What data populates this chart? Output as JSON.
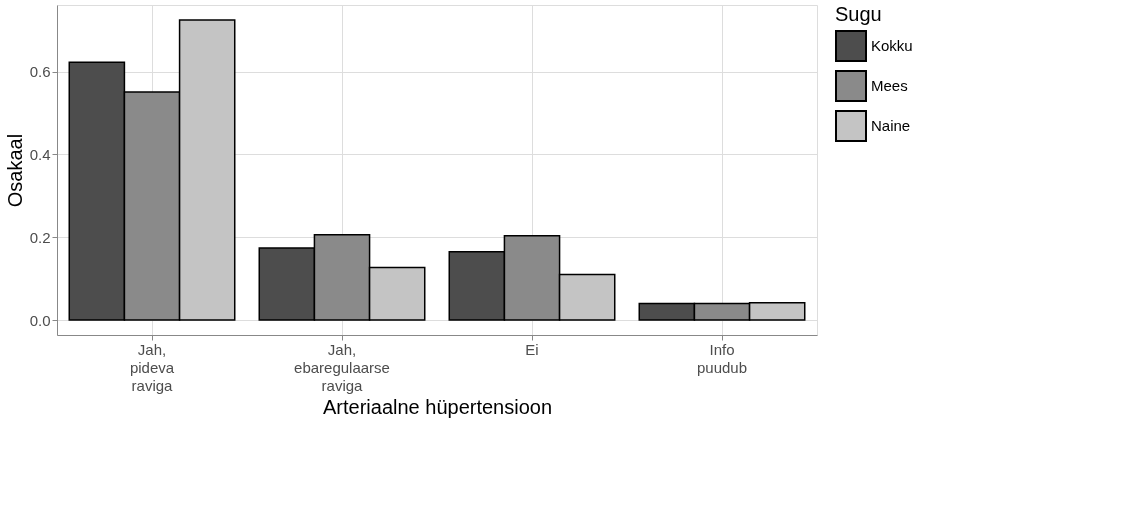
{
  "chart_data": {
    "type": "bar",
    "xlabel": "Arteriaalne hüpertensioon",
    "ylabel": "Osakaal",
    "legend_title": "Sugu",
    "categories": [
      "Jah,\npideva\nraviga",
      "Jah,\nebaregulaarse\nraviga",
      "Ei",
      "Info\npuudub"
    ],
    "series": [
      {
        "name": "Kokku",
        "color": "#4d4d4d",
        "values": [
          0.623,
          0.174,
          0.165,
          0.04
        ]
      },
      {
        "name": "Mees",
        "color": "#8a8a8a",
        "values": [
          0.551,
          0.206,
          0.204,
          0.04
        ]
      },
      {
        "name": "Naine",
        "color": "#c4c4c4",
        "values": [
          0.725,
          0.127,
          0.11,
          0.042
        ]
      }
    ],
    "ylim": [
      -0.036,
      0.761
    ],
    "yticks": [
      {
        "value": 0,
        "label": "0.0"
      },
      {
        "value": 0.2,
        "label": "0.2"
      },
      {
        "value": 0.4,
        "label": "0.4"
      },
      {
        "value": 0.6,
        "label": "0.6"
      }
    ],
    "grid": true,
    "legend": "right"
  }
}
